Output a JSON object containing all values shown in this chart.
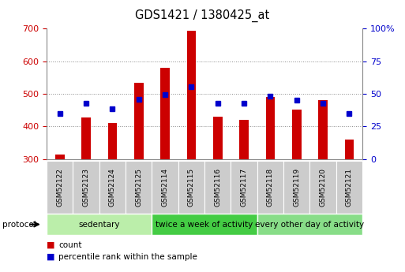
{
  "title": "GDS1421 / 1380425_at",
  "samples": [
    "GSM52122",
    "GSM52123",
    "GSM52124",
    "GSM52125",
    "GSM52114",
    "GSM52115",
    "GSM52116",
    "GSM52117",
    "GSM52118",
    "GSM52119",
    "GSM52120",
    "GSM52121"
  ],
  "counts": [
    313,
    427,
    410,
    533,
    580,
    693,
    430,
    420,
    490,
    452,
    480,
    360
  ],
  "percentile_ranks": [
    440,
    470,
    453,
    483,
    497,
    523,
    470,
    470,
    492,
    480,
    470,
    440
  ],
  "baseline": 300,
  "ylim_left": [
    300,
    700
  ],
  "ylim_right": [
    0,
    100
  ],
  "yticks_left": [
    300,
    400,
    500,
    600,
    700
  ],
  "yticks_right": [
    0,
    25,
    50,
    75,
    100
  ],
  "bar_color": "#cc0000",
  "marker_color": "#0000cc",
  "groups": [
    {
      "label": "sedentary",
      "start": 0,
      "end": 4,
      "color": "#bbeeaa"
    },
    {
      "label": "twice a week of activity",
      "start": 4,
      "end": 8,
      "color": "#44cc44"
    },
    {
      "label": "every other day of activity",
      "start": 8,
      "end": 12,
      "color": "#88dd88"
    }
  ],
  "tick_bg_color": "#cccccc",
  "protocol_label": "protocol",
  "legend_count": "count",
  "legend_percentile": "percentile rank within the sample",
  "grid_color": "#888888",
  "tick_label_color_left": "#cc0000",
  "tick_label_color_right": "#0000cc",
  "background_color": "#ffffff"
}
